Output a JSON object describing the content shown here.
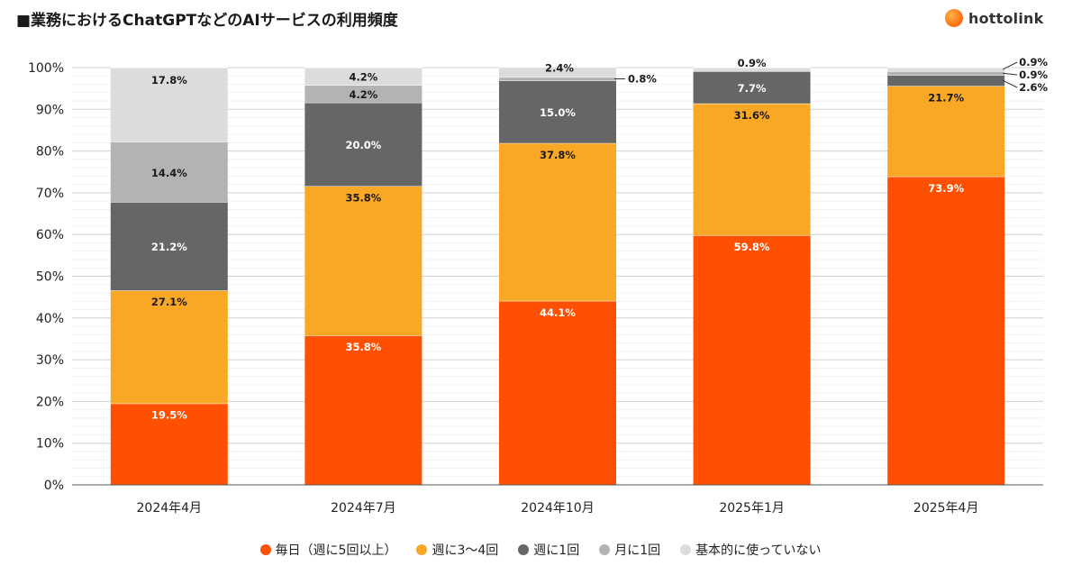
{
  "title": "■業務におけるChatGPTなどのAIサービスの利用頻度",
  "brand": {
    "name": "hottolink"
  },
  "chart_data": {
    "type": "bar",
    "stacked": true,
    "title": "■業務におけるChatGPTなどのAIサービスの利用頻度",
    "categories": [
      "2024年4月",
      "2024年7月",
      "2024年10月",
      "2025年1月",
      "2025年4月"
    ],
    "ylim": [
      0,
      100
    ],
    "yticks": [
      "0%",
      "10%",
      "20%",
      "30%",
      "40%",
      "50%",
      "60%",
      "70%",
      "80%",
      "90%",
      "100%"
    ],
    "series": [
      {
        "name": "毎日（週に5回以上）",
        "color": "#ff4f00",
        "label_color": "#ffffff",
        "values": [
          19.5,
          35.8,
          44.1,
          59.8,
          73.9
        ]
      },
      {
        "name": "週に3〜4回",
        "color": "#f9a825",
        "label_color": "#1a1a1a",
        "values": [
          27.1,
          35.8,
          37.8,
          31.6,
          21.7
        ]
      },
      {
        "name": "週に1回",
        "color": "#666666",
        "label_color": "#ffffff",
        "values": [
          21.2,
          20.0,
          15.0,
          7.7,
          2.6
        ]
      },
      {
        "name": "月に1回",
        "color": "#b3b3b3",
        "label_color": "#1a1a1a",
        "values": [
          14.4,
          4.2,
          0.8,
          0.0,
          0.9
        ]
      },
      {
        "name": "基本的に使っていない",
        "color": "#dcdcdc",
        "label_color": "#1a1a1a",
        "values": [
          17.8,
          4.2,
          2.4,
          0.9,
          0.9
        ]
      }
    ],
    "data_labels": [
      [
        "19.5%",
        "35.8%",
        "44.1%",
        "59.8%",
        "73.9%"
      ],
      [
        "27.1%",
        "35.8%",
        "37.8%",
        "31.6%",
        "21.7%"
      ],
      [
        "21.2%",
        "20.0%",
        "15.0%",
        "7.7%",
        "2.6%"
      ],
      [
        "14.4%",
        "4.2%",
        "0.8%",
        "",
        "0.9%"
      ],
      [
        "17.8%",
        "4.2%",
        "2.4%",
        "0.9%",
        "0.9%"
      ]
    ],
    "legend_position": "bottom",
    "grid": true
  }
}
